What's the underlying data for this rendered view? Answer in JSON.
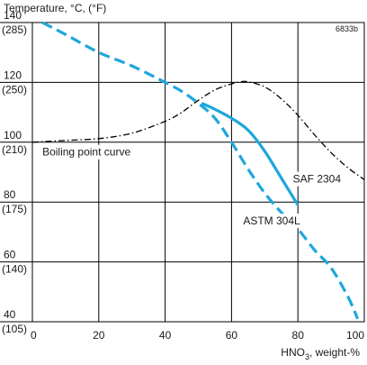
{
  "chart_data": {
    "type": "line",
    "title": "Temperature, °C, (°F)",
    "code": "6833b",
    "xlabel": {
      "prefix": "HNO",
      "sub": "3",
      "suffix": ", weight-%"
    },
    "xlim": [
      0,
      100
    ],
    "ylim": [
      40,
      140
    ],
    "grid": true,
    "x_ticks": [
      {
        "value": 0,
        "label": "0"
      },
      {
        "value": 20,
        "label": "20"
      },
      {
        "value": 40,
        "label": "40"
      },
      {
        "value": 60,
        "label": "60"
      },
      {
        "value": 80,
        "label": "80"
      },
      {
        "value": 100,
        "label": "100"
      }
    ],
    "y_ticks": [
      {
        "value": 140,
        "c": "140",
        "f": "(285)"
      },
      {
        "value": 120,
        "c": "120",
        "f": "(250)"
      },
      {
        "value": 100,
        "c": "100",
        "f": "(210)"
      },
      {
        "value": 80,
        "c": "80",
        "f": "(175)"
      },
      {
        "value": 60,
        "c": "60",
        "f": "(140)"
      },
      {
        "value": 40,
        "c": "40",
        "f": "(105)"
      }
    ],
    "series": [
      {
        "name": "Boiling point curve",
        "color": "#000000",
        "style": "dashdot",
        "label_at": [
          3,
          95.5
        ],
        "x": [
          0,
          10,
          20,
          30,
          40,
          45,
          50,
          55,
          60,
          63,
          65,
          70,
          75,
          80,
          85,
          90,
          95,
          100
        ],
        "y": [
          100,
          100.6,
          101.2,
          103,
          107,
          110,
          114,
          117.5,
          119.5,
          120.2,
          120.2,
          118.5,
          114.5,
          109,
          102.5,
          96.5,
          91.5,
          87.5
        ]
      },
      {
        "name": "SAF 2304",
        "color": "#1ea7dc",
        "style": "solid",
        "label_at": [
          78.5,
          86.5
        ],
        "x": [
          51,
          55,
          60,
          65,
          70,
          75,
          80
        ],
        "y": [
          113,
          111,
          108,
          104,
          97,
          88,
          79
        ]
      },
      {
        "name": "ASTM 304L",
        "color": "#1ea7dc",
        "style": "dashed",
        "label_at": [
          63.5,
          72.5
        ],
        "x": [
          3,
          10,
          20,
          30,
          40,
          45,
          50,
          55,
          60,
          65,
          70,
          75,
          80,
          85,
          90,
          95,
          98
        ],
        "y": [
          140,
          136,
          130,
          125.5,
          120,
          117,
          113,
          108,
          100,
          91,
          83,
          76.5,
          71,
          64,
          58,
          48.5,
          41
        ]
      }
    ]
  }
}
